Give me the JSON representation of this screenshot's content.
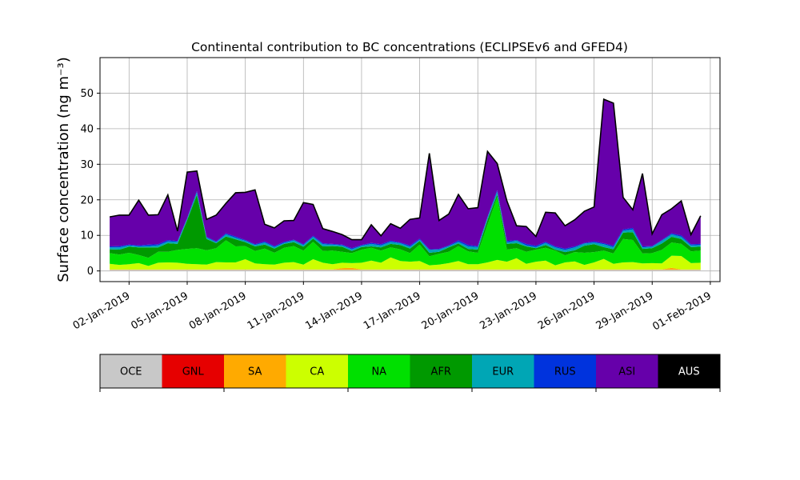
{
  "chart_data": [
    {
      "type": "area",
      "stacked": true,
      "title": "Continental contribution to BC concentrations (ECLIPSEv6 and GFED4)",
      "ylabel": "Surface concentration (ng m⁻³)",
      "xlabel": "",
      "x_tick_labels": [
        "02-Jan-2019",
        "05-Jan-2019",
        "08-Jan-2019",
        "11-Jan-2019",
        "14-Jan-2019",
        "17-Jan-2019",
        "20-Jan-2019",
        "23-Jan-2019",
        "26-Jan-2019",
        "29-Jan-2019",
        "01-Feb-2019"
      ],
      "y_ticks": [
        0,
        10,
        20,
        30,
        40,
        50
      ],
      "xlim": [
        0.5,
        32.5
      ],
      "ylim": [
        -3,
        60
      ],
      "grid": true,
      "x_day_of_jan": [
        1.0,
        1.5,
        2.0,
        2.5,
        3.0,
        3.5,
        4.0,
        4.5,
        5.0,
        5.5,
        6.0,
        6.5,
        7.0,
        7.5,
        8.0,
        8.5,
        9.0,
        9.5,
        10.0,
        10.5,
        11.0,
        11.5,
        12.0,
        12.5,
        13.0,
        13.5,
        14.0,
        14.5,
        15.0,
        15.5,
        16.0,
        16.5,
        17.0,
        17.5,
        18.0,
        18.5,
        19.0,
        19.5,
        20.0,
        20.5,
        21.0,
        21.5,
        22.0,
        22.5,
        23.0,
        23.5,
        24.0,
        24.5,
        25.0,
        25.5,
        26.0,
        26.5,
        27.0,
        27.5,
        28.0,
        28.5,
        29.0,
        29.5,
        30.0,
        30.5,
        31.0,
        31.5
      ],
      "series": [
        {
          "name": "OCE",
          "color": "#c8c8c8",
          "values": [
            0.3,
            0.3,
            0.3,
            0.3,
            0.3,
            0.3,
            0.3,
            0.3,
            0.3,
            0.3,
            0.3,
            0.3,
            0.3,
            0.3,
            0.3,
            0.3,
            0.3,
            0.3,
            0.3,
            0.3,
            0.3,
            0.3,
            0.3,
            0.3,
            0.3,
            0.3,
            0.3,
            0.3,
            0.3,
            0.3,
            0.3,
            0.3,
            0.3,
            0.3,
            0.3,
            0.3,
            0.3,
            0.3,
            0.3,
            0.3,
            0.3,
            0.3,
            0.3,
            0.3,
            0.3,
            0.3,
            0.3,
            0.3,
            0.3,
            0.3,
            0.3,
            0.3,
            0.3,
            0.3,
            0.3,
            0.3,
            0.3,
            0.3,
            0.3,
            0.3,
            0.3,
            0.3
          ]
        },
        {
          "name": "GNL",
          "color": "#e60000",
          "values": [
            0,
            0,
            0,
            0,
            0,
            0,
            0,
            0,
            0,
            0,
            0,
            0,
            0,
            0,
            0,
            0,
            0,
            0,
            0,
            0,
            0,
            0,
            0,
            0,
            0,
            0,
            0,
            0,
            0,
            0,
            0,
            0,
            0,
            0,
            0,
            0,
            0,
            0,
            0,
            0,
            0,
            0,
            0,
            0,
            0,
            0,
            0,
            0,
            0,
            0,
            0,
            0,
            0,
            0,
            0,
            0,
            0,
            0,
            0,
            0,
            0,
            0
          ]
        },
        {
          "name": "SA",
          "color": "#ffaa00",
          "values": [
            0.1,
            0.1,
            0.1,
            0.1,
            0.1,
            0.1,
            0.1,
            0.1,
            0.1,
            0.1,
            0.1,
            0.1,
            0.1,
            0.1,
            0.1,
            0.1,
            0.1,
            0.1,
            0.1,
            0.1,
            0.1,
            0.1,
            0.1,
            0.1,
            0.5,
            0.6,
            0.1,
            0.1,
            0.1,
            0.1,
            0.1,
            0.1,
            0.1,
            0.1,
            0.1,
            0.1,
            0.1,
            0.1,
            0.1,
            0.1,
            0.1,
            0.1,
            0.1,
            0.1,
            0.1,
            0.1,
            0.1,
            0.1,
            0.1,
            0.1,
            0.1,
            0.1,
            0.1,
            0.1,
            0.1,
            0.1,
            0.1,
            0.1,
            0.6,
            0.1,
            0.1,
            0.1
          ]
        },
        {
          "name": "CA",
          "color": "#ccff00",
          "values": [
            1.6,
            1.3,
            1.5,
            1.8,
            1.0,
            1.9,
            2.0,
            1.9,
            1.6,
            1.5,
            1.4,
            2.1,
            2.0,
            2.0,
            2.9,
            1.7,
            1.5,
            1.4,
            1.9,
            2.1,
            1.4,
            2.9,
            1.9,
            1.5,
            1.5,
            1.3,
            1.9,
            2.5,
            1.9,
            3.4,
            2.4,
            2.2,
            2.4,
            1.2,
            1.4,
            1.8,
            2.4,
            1.5,
            1.5,
            2.0,
            2.7,
            2.2,
            3.2,
            1.6,
            2.2,
            2.5,
            1.2,
            2.0,
            2.3,
            1.3,
            2.0,
            3.0,
            1.6,
            2.0,
            2.1,
            1.7,
            1.8,
            1.7,
            3.4,
            3.8,
            1.8,
            1.9
          ]
        },
        {
          "name": "NA",
          "color": "#00e000",
          "values": [
            3.0,
            2.9,
            3.2,
            2.3,
            2.3,
            3.1,
            3.0,
            3.6,
            4.2,
            4.5,
            4.0,
            3.9,
            6.2,
            4.5,
            3.7,
            3.5,
            4.4,
            3.3,
            4.2,
            4.5,
            3.9,
            4.9,
            3.3,
            3.8,
            3.1,
            2.8,
            3.7,
            3.6,
            3.4,
            2.8,
            3.3,
            2.4,
            4.6,
            2.5,
            3.0,
            3.2,
            4.2,
            3.6,
            3.2,
            10.6,
            17.6,
            3.4,
            2.8,
            3.4,
            3.4,
            3.6,
            4.1,
            2.0,
            2.6,
            3.4,
            2.9,
            2.3,
            2.9,
            6.6,
            6.2,
            2.8,
            2.8,
            3.8,
            3.7,
            3.4,
            3.3,
            3.4
          ]
        },
        {
          "name": "AFR",
          "color": "#009900",
          "values": [
            1.1,
            1.4,
            1.7,
            2.1,
            2.9,
            1.2,
            2.4,
            1.7,
            8.1,
            15.0,
            3.2,
            1.4,
            1.1,
            2.0,
            1.1,
            1.3,
            1.1,
            1.2,
            1.1,
            1.1,
            1.1,
            0.9,
            1.3,
            1.3,
            1.4,
            0.6,
            0.7,
            0.4,
            0.9,
            1.0,
            1.2,
            1.3,
            1.0,
            1.0,
            0.6,
            1.2,
            0.7,
            0.7,
            0.9,
            1.3,
            0.8,
            1.6,
            1.4,
            1.5,
            0.4,
            0.8,
            0.3,
            0.9,
            0.5,
            2.0,
            2.2,
            1.0,
            1.2,
            1.8,
            2.2,
            1.3,
            1.4,
            1.8,
            1.6,
            1.4,
            1.2,
            1.1
          ]
        },
        {
          "name": "EUR",
          "color": "#00a6b5",
          "values": [
            0.5,
            0.6,
            0.4,
            0.3,
            0.4,
            0.6,
            0.5,
            0.6,
            0.4,
            0.7,
            0.4,
            0.3,
            0.6,
            0.4,
            0.4,
            0.4,
            0.6,
            0.4,
            0.3,
            0.5,
            0.5,
            0.5,
            0.6,
            0.4,
            0.4,
            0.5,
            0.4,
            0.7,
            0.6,
            0.6,
            0.5,
            0.5,
            0.4,
            0.8,
            0.6,
            0.4,
            0.5,
            0.7,
            0.7,
            0.7,
            0.8,
            0.4,
            0.7,
            0.3,
            0.3,
            0.6,
            0.6,
            0.6,
            0.8,
            0.6,
            0.5,
            0.8,
            0.6,
            0.5,
            0.8,
            0.4,
            0.4,
            0.8,
            0.7,
            0.6,
            0.5,
            0.5
          ]
        },
        {
          "name": "RUS",
          "color": "#0033dd",
          "values": [
            0.3,
            0.4,
            0.2,
            0.3,
            0.4,
            0.3,
            0.4,
            0.2,
            0.2,
            0.4,
            0.2,
            0.2,
            0.3,
            0.4,
            0.2,
            0.2,
            0.3,
            0.3,
            0.3,
            0.2,
            0.2,
            0.3,
            0.3,
            0.2,
            0.2,
            0.3,
            0.2,
            0.3,
            0.3,
            0.3,
            0.2,
            0.4,
            0.3,
            0.2,
            0.2,
            0.2,
            0.4,
            0.4,
            0.3,
            0.2,
            0.4,
            0.4,
            0.2,
            0.4,
            0.4,
            0.3,
            0.3,
            0.4,
            0.3,
            0.2,
            0.3,
            0.3,
            0.4,
            0.4,
            0.4,
            0.3,
            0.2,
            0.2,
            0.3,
            0.4,
            0.3,
            0.3
          ]
        },
        {
          "name": "ASI",
          "color": "#6600aa",
          "values": [
            8.3,
            8.7,
            8.3,
            12.7,
            8.3,
            8.3,
            12.7,
            2.8,
            12.9,
            5.6,
            4.9,
            7.4,
            8.4,
            12.3,
            13.4,
            15.3,
            4.8,
            5.1,
            5.9,
            5.4,
            11.7,
            8.8,
            4.1,
            3.5,
            2.8,
            2.4,
            1.5,
            5.1,
            2.4,
            4.8,
            4.0,
            7.3,
            5.8,
            27.0,
            8.0,
            8.8,
            12.9,
            10.2,
            10.8,
            18.4,
            7.5,
            11.3,
            4.0,
            4.9,
            2.6,
            8.3,
            9.4,
            6.4,
            7.5,
            8.9,
            9.7,
            40.5,
            40.1,
            9.0,
            5.1,
            20.5,
            3.4,
            7.1,
            6.9,
            9.7,
            2.7,
            7.9
          ]
        },
        {
          "name": "AUS",
          "color": "#000000",
          "values": [
            0,
            0,
            0,
            0,
            0,
            0,
            0,
            0,
            0,
            0,
            0,
            0,
            0,
            0,
            0,
            0,
            0,
            0,
            0,
            0,
            0,
            0,
            0,
            0,
            0,
            0,
            0,
            0,
            0,
            0,
            0,
            0,
            0,
            0,
            0,
            0,
            0,
            0,
            0,
            0,
            0,
            0,
            0,
            0,
            0,
            0,
            0,
            0,
            0,
            0,
            0,
            0,
            0,
            0,
            0,
            0,
            0,
            0,
            0,
            0,
            0,
            0
          ]
        }
      ]
    },
    {
      "type": "colorbar",
      "categories": [
        "OCE",
        "GNL",
        "SA",
        "CA",
        "NA",
        "AFR",
        "EUR",
        "RUS",
        "ASI",
        "AUS"
      ],
      "colors": [
        "#c8c8c8",
        "#e60000",
        "#ffaa00",
        "#ccff00",
        "#00e000",
        "#009900",
        "#00a6b5",
        "#0033dd",
        "#6600aa",
        "#000000"
      ],
      "label_colors": [
        "#000000",
        "#000000",
        "#000000",
        "#000000",
        "#000000",
        "#000000",
        "#000000",
        "#000000",
        "#000000",
        "#ffffff"
      ]
    }
  ]
}
